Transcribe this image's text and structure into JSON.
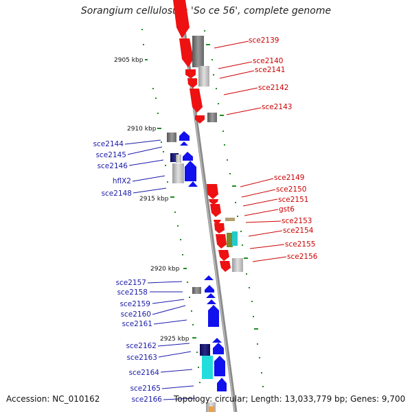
{
  "title": "Sorangium cellulosum 'So ce 56', complete genome",
  "footer": {
    "accession": "Accession: NC_010162",
    "info": "Topology: circular; Length: 13,033,779 bp; Genes: 9,700"
  },
  "colors": {
    "forward_strand": "#ee1111",
    "reverse_strand": "#1111ee",
    "rna_gray": "#8a8a8a",
    "backbone": "#8c8c8c",
    "tick_green": "#1e8a1e"
  },
  "kbp_labels": [
    "2905 kbp",
    "2910 kbp",
    "2915 kbp",
    "2920 kbp",
    "2925 kbp"
  ],
  "genes_right": [
    "sce2139",
    "sce2140",
    "sce2141",
    "sce2142",
    "sce2143",
    "sce2149",
    "sce2150",
    "sce2151",
    "gst6",
    "sce2153",
    "sce2154",
    "sce2155",
    "sce2156"
  ],
  "genes_left": [
    "sce2144",
    "sce2145",
    "sce2146",
    "hflX2",
    "sce2148",
    "sce2157",
    "sce2158",
    "sce2159",
    "sce2160",
    "sce2161",
    "sce2162",
    "sce2163",
    "sce2164",
    "sce2165",
    "sce2166"
  ]
}
